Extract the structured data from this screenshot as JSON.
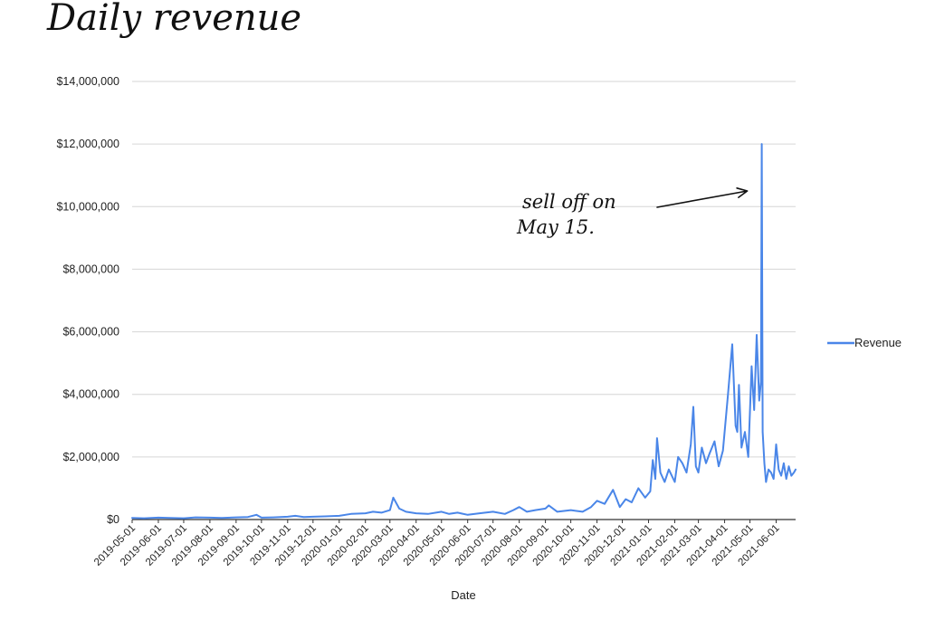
{
  "chart_data": {
    "type": "line",
    "title": "Daily revenue",
    "xlabel": "Date",
    "ylabel": "",
    "ylim": [
      0,
      14000000
    ],
    "xlim": [
      "2019-05-01",
      "2021-06-24"
    ],
    "y_tick_values": [
      0,
      2000000,
      4000000,
      6000000,
      8000000,
      10000000,
      12000000,
      14000000
    ],
    "y_tick_labels": [
      "$0",
      "$2,000,000",
      "$4,000,000",
      "$6,000,000",
      "$8,000,000",
      "$10,000,000",
      "$12,000,000",
      "$14,000,000"
    ],
    "x_tick_labels": [
      "2019-05-01",
      "2019-06-01",
      "2019-07-01",
      "2019-08-01",
      "2019-09-01",
      "2019-10-01",
      "2019-11-01",
      "2019-12-01",
      "2020-01-01",
      "2020-02-01",
      "2020-03-01",
      "2020-04-01",
      "2020-05-01",
      "2020-06-01",
      "2020-07-01",
      "2020-08-01",
      "2020-09-01",
      "2020-10-01",
      "2020-11-01",
      "2020-12-01",
      "2021-01-01",
      "2021-02-01",
      "2021-03-01",
      "2021-04-01",
      "2021-05-01",
      "2021-06-01"
    ],
    "grid": true,
    "legend": "right",
    "series_color": "#4a86e8",
    "series": [
      {
        "name": "Revenue",
        "x": [
          "2019-05-01",
          "2019-05-15",
          "2019-06-01",
          "2019-06-15",
          "2019-07-01",
          "2019-07-15",
          "2019-08-01",
          "2019-08-15",
          "2019-09-01",
          "2019-09-15",
          "2019-09-25",
          "2019-10-01",
          "2019-10-15",
          "2019-11-01",
          "2019-11-10",
          "2019-11-20",
          "2019-12-01",
          "2019-12-15",
          "2020-01-01",
          "2020-01-15",
          "2020-02-01",
          "2020-02-10",
          "2020-02-20",
          "2020-03-01",
          "2020-03-05",
          "2020-03-12",
          "2020-03-20",
          "2020-04-01",
          "2020-04-15",
          "2020-05-01",
          "2020-05-10",
          "2020-05-20",
          "2020-06-01",
          "2020-06-15",
          "2020-07-01",
          "2020-07-15",
          "2020-07-25",
          "2020-08-01",
          "2020-08-10",
          "2020-08-20",
          "2020-09-01",
          "2020-09-05",
          "2020-09-15",
          "2020-10-01",
          "2020-10-15",
          "2020-10-25",
          "2020-11-01",
          "2020-11-10",
          "2020-11-20",
          "2020-11-28",
          "2020-12-05",
          "2020-12-12",
          "2020-12-20",
          "2020-12-28",
          "2021-01-03",
          "2021-01-06",
          "2021-01-09",
          "2021-01-11",
          "2021-01-15",
          "2021-01-20",
          "2021-01-25",
          "2021-02-01",
          "2021-02-05",
          "2021-02-10",
          "2021-02-15",
          "2021-02-20",
          "2021-02-23",
          "2021-02-26",
          "2021-03-01",
          "2021-03-05",
          "2021-03-10",
          "2021-03-14",
          "2021-03-20",
          "2021-03-25",
          "2021-03-30",
          "2021-04-05",
          "2021-04-10",
          "2021-04-14",
          "2021-04-16",
          "2021-04-18",
          "2021-04-21",
          "2021-04-25",
          "2021-04-29",
          "2021-05-03",
          "2021-05-06",
          "2021-05-09",
          "2021-05-12",
          "2021-05-14",
          "2021-05-15",
          "2021-05-16",
          "2021-05-18",
          "2021-05-20",
          "2021-05-23",
          "2021-05-26",
          "2021-05-29",
          "2021-06-01",
          "2021-06-04",
          "2021-06-07",
          "2021-06-10",
          "2021-06-13",
          "2021-06-16",
          "2021-06-19",
          "2021-06-22",
          "2021-06-24"
        ],
        "y": [
          50000,
          40000,
          60000,
          50000,
          40000,
          70000,
          60000,
          50000,
          70000,
          80000,
          150000,
          60000,
          70000,
          90000,
          120000,
          80000,
          90000,
          100000,
          120000,
          180000,
          200000,
          250000,
          220000,
          300000,
          700000,
          350000,
          250000,
          200000,
          180000,
          250000,
          180000,
          220000,
          150000,
          200000,
          250000,
          180000,
          300000,
          400000,
          250000,
          300000,
          350000,
          450000,
          250000,
          300000,
          250000,
          400000,
          600000,
          500000,
          950000,
          400000,
          650000,
          550000,
          1000000,
          700000,
          900000,
          1900000,
          1300000,
          2600000,
          1500000,
          1200000,
          1600000,
          1200000,
          2000000,
          1800000,
          1500000,
          2400000,
          3600000,
          1700000,
          1500000,
          2300000,
          1800000,
          2100000,
          2500000,
          1700000,
          2200000,
          4000000,
          5600000,
          3000000,
          2800000,
          4300000,
          2300000,
          2800000,
          2000000,
          4900000,
          3500000,
          5900000,
          3800000,
          4400000,
          12000000,
          2800000,
          1800000,
          1200000,
          1600000,
          1500000,
          1300000,
          2400000,
          1600000,
          1400000,
          1800000,
          1300000,
          1700000,
          1400000,
          1500000,
          1600000
        ]
      }
    ],
    "annotation": {
      "line1": "sell off on",
      "line2": "May 15.",
      "target_date": "2021-05-15",
      "target_value": 12000000
    }
  }
}
